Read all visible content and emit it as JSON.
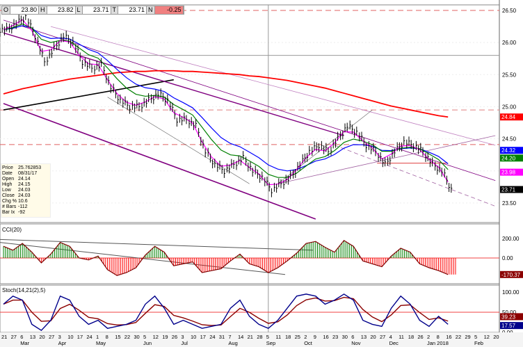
{
  "header": {
    "fields": [
      {
        "key": "O",
        "value": "23.80"
      },
      {
        "key": "H",
        "value": "23.82"
      },
      {
        "key": "L",
        "value": "23.71"
      },
      {
        "key": "T",
        "value": "23.71"
      },
      {
        "key": "N",
        "value": "-0.25"
      }
    ]
  },
  "info_box": [
    {
      "label": "Price",
      "value": "25.762853"
    },
    {
      "label": "Date",
      "value": "08/31/17"
    },
    {
      "label": "Open",
      "value": "24.14"
    },
    {
      "label": "High",
      "value": "24.15"
    },
    {
      "label": "Low",
      "value": "24.03"
    },
    {
      "label": "Close",
      "value": "24.03"
    },
    {
      "label": "Chg %",
      "value": "10.6"
    },
    {
      "label": "# Bars",
      "value": "-112"
    },
    {
      "label": "Bar Ix",
      "value": "-92"
    }
  ],
  "colors": {
    "ma200": "#ff0000",
    "ma_blue": "#0000ff",
    "ma_green": "#008000",
    "ma_magenta": "#ff00ff",
    "channel": "#800080",
    "cci_pos": "#008000",
    "cci_neg": "#ff0000",
    "stoch_k": "#00008b",
    "stoch_d": "#8b0000"
  },
  "chart_data": [
    {
      "type": "ohlc",
      "panel": "price",
      "x": [
        "21",
        "27",
        "6",
        "13",
        "20",
        "27",
        "3",
        "10",
        "17",
        "24",
        "1",
        "8",
        "15",
        "22",
        "30",
        "5",
        "12",
        "19",
        "26",
        "3",
        "10",
        "17",
        "24",
        "31",
        "7",
        "14",
        "21",
        "28",
        "5",
        "11",
        "18",
        "25",
        "2",
        "9",
        "16",
        "23",
        "30",
        "6",
        "13",
        "20",
        "27",
        "4",
        "11",
        "18",
        "26",
        "2",
        "8",
        "16"
      ],
      "close": [
        26.2,
        26.3,
        26.4,
        26.1,
        25.7,
        25.9,
        26.1,
        26.0,
        25.7,
        25.6,
        25.65,
        25.3,
        25.1,
        25.0,
        25.0,
        25.1,
        25.2,
        25.1,
        24.8,
        24.8,
        24.7,
        24.3,
        24.1,
        24.0,
        24.1,
        24.2,
        24.0,
        23.9,
        23.7,
        23.8,
        23.9,
        24.1,
        24.3,
        24.4,
        24.3,
        24.5,
        24.7,
        24.6,
        24.4,
        24.3,
        24.1,
        24.3,
        24.45,
        24.4,
        24.3,
        24.1,
        24.0,
        23.71
      ],
      "ma200": [
        25.2,
        25.24,
        25.28,
        25.31,
        25.34,
        25.37,
        25.4,
        25.43,
        25.45,
        25.47,
        25.49,
        25.51,
        25.53,
        25.54,
        25.55,
        25.55,
        25.56,
        25.56,
        25.56,
        25.55,
        25.55,
        25.54,
        25.53,
        25.52,
        25.51,
        25.5,
        25.48,
        25.47,
        25.45,
        25.43,
        25.41,
        25.38,
        25.35,
        25.32,
        25.29,
        25.25,
        25.21,
        25.17,
        25.13,
        25.09,
        25.05,
        25.01,
        24.98,
        24.95,
        24.92,
        24.89,
        24.86,
        24.84
      ],
      "ylim": [
        23.2,
        26.6
      ],
      "yticks": [
        "26.50",
        "26.00",
        "25.50",
        "25.00",
        "24.50",
        "23.50"
      ],
      "last_values": [
        {
          "value": "24.84",
          "color": "#ff0000",
          "price": 24.84
        },
        {
          "value": "24.32",
          "color": "#0000ff",
          "price": 24.32
        },
        {
          "value": "24.20",
          "color": "#008000",
          "price": 24.2
        },
        {
          "value": "23.98",
          "color": "#ff00ff",
          "price": 23.98
        },
        {
          "value": "23.71",
          "color": "#000000",
          "price": 23.71
        }
      ],
      "hlines": [
        {
          "price": 26.5,
          "style": "dashed",
          "color": "#e06060"
        },
        {
          "price": 24.41,
          "style": "dashed",
          "color": "#e06060"
        },
        {
          "price": 24.95,
          "style": "dashed",
          "color": "#e08080"
        },
        {
          "price": 25.8,
          "style": "solid",
          "color": "#999999"
        }
      ],
      "trendlines": [
        {
          "from": [
            0,
            25.05
          ],
          "to": [
            33,
            23.25
          ],
          "color": "#800080",
          "w": 1.6
        },
        {
          "from": [
            0,
            24.95
          ],
          "to": [
            18,
            25.42
          ],
          "color": "#000000",
          "w": 1.6
        },
        {
          "from": [
            0,
            26.35
          ],
          "to": [
            52,
            23.85
          ],
          "color": "#800080",
          "w": 0.8
        },
        {
          "from": [
            0,
            26.15
          ],
          "to": [
            36,
            24.55
          ],
          "color": "#800080",
          "w": 1.4
        },
        {
          "from": [
            5,
            26.25
          ],
          "to": [
            52,
            24.4
          ],
          "color": "#c080c0",
          "w": 0.8
        },
        {
          "from": [
            29,
            23.8
          ],
          "to": [
            52,
            24.55
          ],
          "color": "#a060a0",
          "w": 0.8
        },
        {
          "from": [
            35,
            24.4
          ],
          "to": [
            52,
            23.45
          ],
          "color": "#a060a0",
          "w": 0.8,
          "dash": true
        },
        {
          "from": [
            11,
            25.15
          ],
          "to": [
            26,
            23.8
          ],
          "color": "#555555",
          "w": 0.6
        },
        {
          "from": [
            29,
            23.8
          ],
          "to": [
            39,
            24.95
          ],
          "color": "#555555",
          "w": 0.6
        }
      ],
      "annotations": [
        "v",
        "v",
        "^",
        "v",
        "^",
        "^",
        "^",
        "v",
        "^",
        "^"
      ]
    },
    {
      "type": "bar",
      "panel": "CCI",
      "title": "CCI(20)",
      "values": [
        120,
        80,
        150,
        60,
        -50,
        40,
        160,
        120,
        0,
        -20,
        20,
        -120,
        -180,
        -150,
        -100,
        30,
        120,
        60,
        -80,
        -60,
        -40,
        -150,
        -130,
        -110,
        -30,
        40,
        -60,
        -90,
        -150,
        -100,
        -30,
        50,
        150,
        170,
        110,
        60,
        180,
        120,
        -30,
        -60,
        -90,
        20,
        100,
        60,
        -60,
        -100,
        -130,
        -170
      ],
      "yticks": [
        "200.00",
        "0.00"
      ],
      "last_value": "-170.37",
      "ylim": [
        -250,
        250
      ]
    },
    {
      "type": "line",
      "panel": "Stoch",
      "title": "Stoch(14,21(2),5)",
      "k": [
        70,
        90,
        80,
        20,
        5,
        30,
        90,
        80,
        40,
        20,
        30,
        10,
        15,
        20,
        30,
        70,
        90,
        60,
        20,
        30,
        20,
        10,
        15,
        20,
        60,
        80,
        40,
        20,
        10,
        30,
        60,
        90,
        95,
        90,
        70,
        80,
        95,
        80,
        30,
        20,
        15,
        60,
        90,
        70,
        30,
        15,
        40,
        20
      ],
      "yticks": [
        "100.00",
        "50.00",
        "0.00"
      ],
      "last_values": [
        "39.23",
        "17.57"
      ],
      "ylim": [
        0,
        100
      ]
    }
  ],
  "x_axis": {
    "ticks": [
      "21",
      "27",
      "6",
      "13",
      "20",
      "27",
      "3",
      "10",
      "17",
      "24",
      "1",
      "8",
      "15",
      "22",
      "30",
      "5",
      "12",
      "19",
      "26",
      "3",
      "10",
      "17",
      "24",
      "31",
      "7",
      "14",
      "21",
      "28",
      "5",
      "11",
      "18",
      "25",
      "2",
      "9",
      "16",
      "23",
      "30",
      "6",
      "13",
      "20",
      "27",
      "4",
      "11",
      "18",
      "26",
      "2",
      "8",
      "16",
      "22",
      "29",
      "5",
      "12",
      "20"
    ],
    "months": [
      "Mar",
      "Apr",
      "May",
      "Jun",
      "Jul",
      "Aug",
      "Sep",
      "Oct",
      "Nov",
      "Dec",
      "Jan 2018",
      "Feb"
    ]
  }
}
